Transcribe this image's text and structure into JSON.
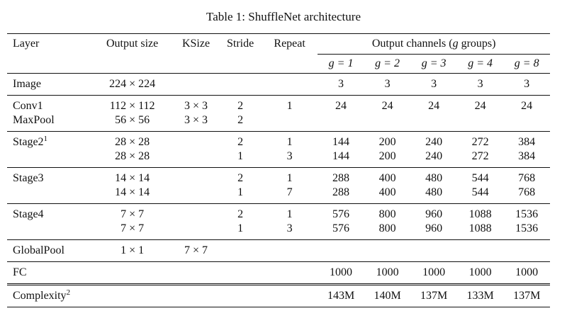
{
  "caption": "Table 1: ShuffleNet architecture",
  "headers": {
    "layer": "Layer",
    "output_size": "Output size",
    "ksize": "KSize",
    "stride": "Stride",
    "repeat": "Repeat",
    "output_channels": "Output channels (",
    "output_channels_var": "g",
    "output_channels_tail": " groups)",
    "groups": [
      "g = 1",
      "g = 2",
      "g = 3",
      "g = 4",
      "g = 8"
    ]
  },
  "rows": {
    "image": {
      "layer": "Image",
      "size": "224 × 224",
      "ch": [
        "3",
        "3",
        "3",
        "3",
        "3"
      ]
    },
    "conv1": {
      "layer": "Conv1",
      "size": "112 × 112",
      "ksize": "3 × 3",
      "stride": "2",
      "repeat": "1",
      "ch": [
        "24",
        "24",
        "24",
        "24",
        "24"
      ]
    },
    "maxpool": {
      "layer": "MaxPool",
      "size": "56 × 56",
      "ksize": "3 × 3",
      "stride": "2"
    },
    "stage2a": {
      "layer": "Stage2",
      "sup": "1",
      "size": "28 × 28",
      "stride": "2",
      "repeat": "1",
      "ch": [
        "144",
        "200",
        "240",
        "272",
        "384"
      ]
    },
    "stage2b": {
      "size": "28 × 28",
      "stride": "1",
      "repeat": "3",
      "ch": [
        "144",
        "200",
        "240",
        "272",
        "384"
      ]
    },
    "stage3a": {
      "layer": "Stage3",
      "size": "14 × 14",
      "stride": "2",
      "repeat": "1",
      "ch": [
        "288",
        "400",
        "480",
        "544",
        "768"
      ]
    },
    "stage3b": {
      "size": "14 × 14",
      "stride": "1",
      "repeat": "7",
      "ch": [
        "288",
        "400",
        "480",
        "544",
        "768"
      ]
    },
    "stage4a": {
      "layer": "Stage4",
      "size": "7 × 7",
      "stride": "2",
      "repeat": "1",
      "ch": [
        "576",
        "800",
        "960",
        "1088",
        "1536"
      ]
    },
    "stage4b": {
      "size": "7 × 7",
      "stride": "1",
      "repeat": "3",
      "ch": [
        "576",
        "800",
        "960",
        "1088",
        "1536"
      ]
    },
    "globalpool": {
      "layer": "GlobalPool",
      "size": "1 × 1",
      "ksize": "7 × 7"
    },
    "fc": {
      "layer": "FC",
      "ch": [
        "1000",
        "1000",
        "1000",
        "1000",
        "1000"
      ]
    },
    "complexity": {
      "layer": "Complexity",
      "sup": "2",
      "ch": [
        "143M",
        "140M",
        "137M",
        "133M",
        "137M"
      ]
    }
  }
}
